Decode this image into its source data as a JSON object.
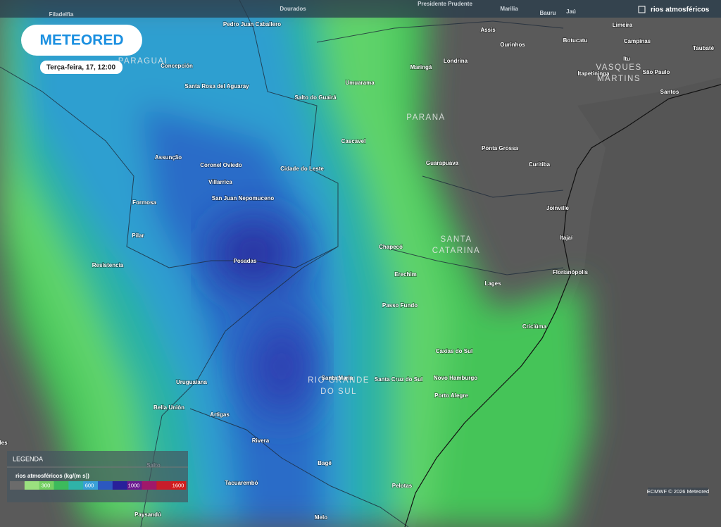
{
  "header": {
    "logo": "METEORED",
    "date": "Terça-feira, 17, 12:00",
    "layer": "rios atmosféricos"
  },
  "top_places": [
    "Filadelfia",
    "Dourados",
    "Presidente Prudente",
    "Marilia",
    "Bauru",
    "Jaú"
  ],
  "places": [
    "Pedro Juan Caballero",
    "Assis",
    "Limeira",
    "Ourinhos",
    "Botucatu",
    "Campinas",
    "Taubaté",
    "Concepción",
    "Maringá",
    "Londrina",
    "Itu",
    "São Paulo",
    "Itapetininga",
    "Santa Rosa del Aguaray",
    "Umuarama",
    "Salto do Guairá",
    "Santos",
    "Cascavel",
    "Ponta Grossa",
    "Assunção",
    "Coronel Oviedo",
    "Cidade do Leste",
    "Guarapuava",
    "Curitiba",
    "Villarrica",
    "San Juan Nepomuceno",
    "Formosa",
    "Joinville",
    "Pilar",
    "Itajaí",
    "Chapecó",
    "Posadas",
    "Resistencia",
    "Florianópolis",
    "Erechim",
    "Lages",
    "Passo Fundo",
    "Criciúma",
    "Caxias do Sul",
    "Santa Maria",
    "Santa Cruz do Sul",
    "Novo Hamburgo",
    "Uruguaiana",
    "Porto Alegre",
    "Bella Unión",
    "Artigas",
    "Rivera",
    "Bagé",
    "Salto",
    "Tacuarembó",
    "Pelotas",
    "Paysandú",
    "Melo",
    "les"
  ],
  "regions": [
    [
      "PARAGUAI"
    ],
    [
      "PARANÁ"
    ],
    [
      "SANTA",
      "CATARINA"
    ],
    [
      "RIO GRANDE",
      "DO SUL"
    ],
    [
      "VASQUES",
      "MARTINS"
    ]
  ],
  "legend": {
    "title": "LEGENDA",
    "unit": "rios atmosféricos (kg/(m s))",
    "ticks": [
      "300",
      "600",
      "1000",
      "1600"
    ]
  },
  "credit": "ECMWF © 2026 Meteored"
}
